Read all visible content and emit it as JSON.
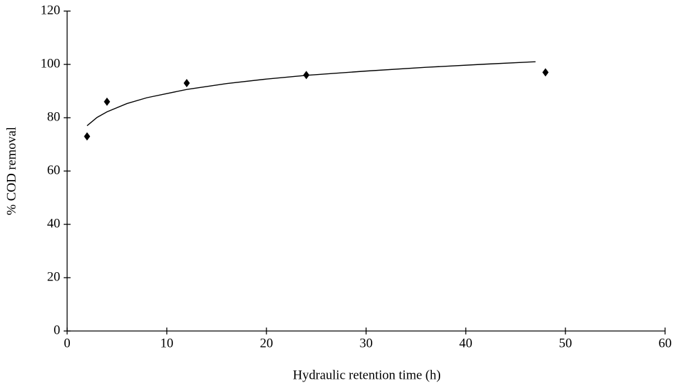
{
  "chart_data": {
    "type": "scatter",
    "xlabel": "Hydraulic retention time (h)",
    "ylabel": "% COD removal",
    "xlim": [
      0,
      60
    ],
    "ylim": [
      0,
      120
    ],
    "xticks": [
      0,
      10,
      20,
      30,
      40,
      50,
      60
    ],
    "yticks": [
      0,
      20,
      40,
      60,
      80,
      100,
      120
    ],
    "series": [
      {
        "type": "scatter",
        "marker": "diamond",
        "color": "#000000",
        "x": [
          2,
          4,
          12,
          24,
          48
        ],
        "values": [
          73,
          86,
          93,
          96,
          97
        ]
      },
      {
        "type": "line",
        "color": "#000000",
        "x": [
          2,
          3,
          4,
          6,
          8,
          12,
          16,
          20,
          24,
          30,
          36,
          42,
          47
        ],
        "values": [
          77.0,
          80.1,
          82.2,
          85.3,
          87.5,
          90.6,
          92.8,
          94.5,
          95.9,
          97.5,
          98.9,
          100.1,
          101.0
        ]
      }
    ]
  }
}
